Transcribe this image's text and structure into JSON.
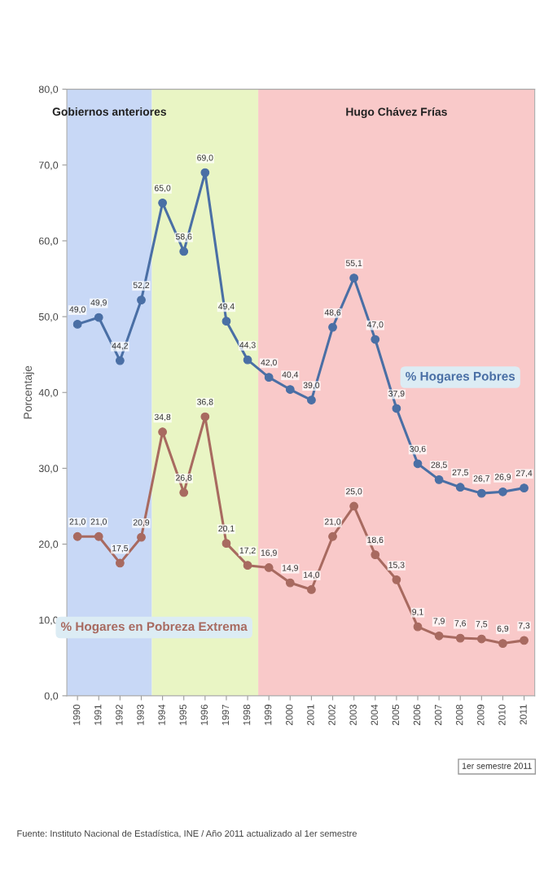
{
  "chart_data": {
    "type": "line",
    "ylabel": "Porcentaje",
    "x": [
      1990,
      1991,
      1992,
      1993,
      1994,
      1995,
      1996,
      1997,
      1998,
      1999,
      2000,
      2001,
      2002,
      2003,
      2004,
      2005,
      2006,
      2007,
      2008,
      2009,
      2010,
      2011
    ],
    "xlim": [
      1989.5,
      2011.5
    ],
    "xticks": [
      1990,
      1991,
      1992,
      1993,
      1994,
      1995,
      1996,
      1997,
      1998,
      1999,
      2000,
      2001,
      2002,
      2003,
      2004,
      2005,
      2006,
      2007,
      2008,
      2009,
      2010,
      2011
    ],
    "ylim": [
      0,
      80
    ],
    "yticks": [
      {
        "value": 0,
        "label": "0,0"
      },
      {
        "value": 10,
        "label": "10,0"
      },
      {
        "value": 20,
        "label": "20,0"
      },
      {
        "value": 30,
        "label": "30,0"
      },
      {
        "value": 40,
        "label": "40,0"
      },
      {
        "value": 50,
        "label": "50,0"
      },
      {
        "value": 60,
        "label": "60,0"
      },
      {
        "value": 70,
        "label": "70,0"
      },
      {
        "value": 80,
        "label": "80,0"
      }
    ],
    "series": [
      {
        "name": "% Hogares Pobres",
        "color": "#4a6fa5",
        "values": [
          49.0,
          49.9,
          44.2,
          52.2,
          65.0,
          58.6,
          69.0,
          49.4,
          44.3,
          42.0,
          40.4,
          39.0,
          48.6,
          55.1,
          47.0,
          37.9,
          30.6,
          28.5,
          27.5,
          26.7,
          26.9,
          27.4
        ],
        "value_labels": [
          "49,0",
          "49,9",
          "44,2",
          "52,2",
          "65,0",
          "58,6",
          "69,0",
          "49,4",
          "44,3",
          "42,0",
          "40,4",
          "39,0",
          "48,6",
          "55,1",
          "47,0",
          "37,9",
          "30,6",
          "28,5",
          "27,5",
          "26,7",
          "26,9",
          "27,4"
        ]
      },
      {
        "name": "% Hogares en Pobreza Extrema",
        "color": "#a86a60",
        "values": [
          21.0,
          21.0,
          17.5,
          20.9,
          34.8,
          26.8,
          36.8,
          20.1,
          17.2,
          16.9,
          14.9,
          14.0,
          21.0,
          25.0,
          18.6,
          15.3,
          9.1,
          7.9,
          7.6,
          7.5,
          6.9,
          7.3
        ],
        "value_labels": [
          "21,0",
          "21,0",
          "17,5",
          "20,9",
          "34,8",
          "26,8",
          "36,8",
          "20,1",
          "17,2",
          "16,9",
          "14,9",
          "14,0",
          "21,0",
          "25,0",
          "18,6",
          "15,3",
          "9,1",
          "7,9",
          "7,6",
          "7,5",
          "6,9",
          "7,3"
        ]
      }
    ],
    "bands": [
      {
        "axis": "x",
        "from": 1989.5,
        "to": 1993.5,
        "label": "Gobiernos anteriores",
        "color": "#c8d8f6"
      },
      {
        "axis": "x",
        "from": 1993.5,
        "to": 1998.5,
        "color": "#e9f5c4"
      },
      {
        "axis": "x",
        "from": 1998.5,
        "to": 2011.5,
        "label": "Hugo Chávez Frías",
        "color": "#f9c9c9"
      }
    ],
    "marker": "circle",
    "line_style": "solid",
    "grid": false,
    "legend": false,
    "annotations": [
      "1er semestre 2011",
      "Fuente: Instituto Nacional de Estadística, INE / Año 2011 actualizado al 1er semestre"
    ]
  }
}
